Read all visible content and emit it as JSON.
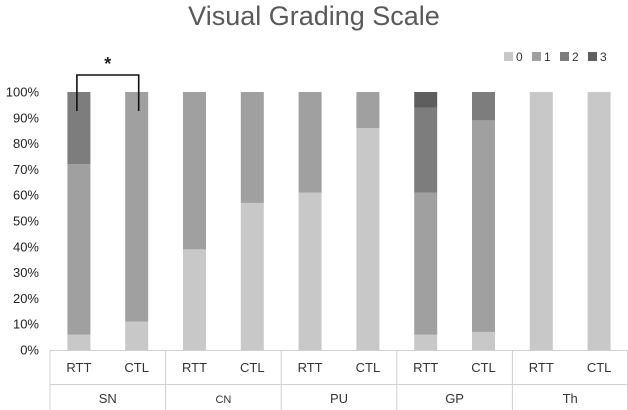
{
  "chart_data": {
    "type": "bar",
    "stacked": true,
    "title": "Visual Grading Scale",
    "ylim": [
      0,
      100
    ],
    "y_ticks": [
      "0%",
      "10%",
      "20%",
      "30%",
      "40%",
      "50%",
      "60%",
      "70%",
      "80%",
      "90%",
      "100%"
    ],
    "categories": [
      "RTT",
      "CTL",
      "RTT",
      "CTL",
      "RTT",
      "CTL",
      "RTT",
      "CTL",
      "RTT",
      "CTL"
    ],
    "groups": [
      {
        "label": "SN"
      },
      {
        "label": "CN"
      },
      {
        "label": "PU"
      },
      {
        "label": "GP"
      },
      {
        "label": "Th"
      }
    ],
    "legend_position": "top-right",
    "series": [
      {
        "name": "0",
        "color": "#c8c8c8",
        "values": [
          6,
          11,
          39,
          57,
          61,
          86,
          6,
          7,
          100,
          100
        ]
      },
      {
        "name": "1",
        "color": "#a0a0a0",
        "values": [
          66,
          89,
          61,
          43,
          39,
          14,
          55,
          82,
          0,
          0
        ]
      },
      {
        "name": "2",
        "color": "#7d7d7d",
        "values": [
          28,
          0,
          0,
          0,
          0,
          0,
          33,
          11,
          0,
          0
        ]
      },
      {
        "name": "3",
        "color": "#5e5e5e",
        "values": [
          0,
          0,
          0,
          0,
          0,
          0,
          6,
          0,
          0,
          0
        ]
      }
    ],
    "annotations": [
      {
        "text": "*",
        "between": [
          0,
          1
        ]
      }
    ],
    "grid": false
  }
}
